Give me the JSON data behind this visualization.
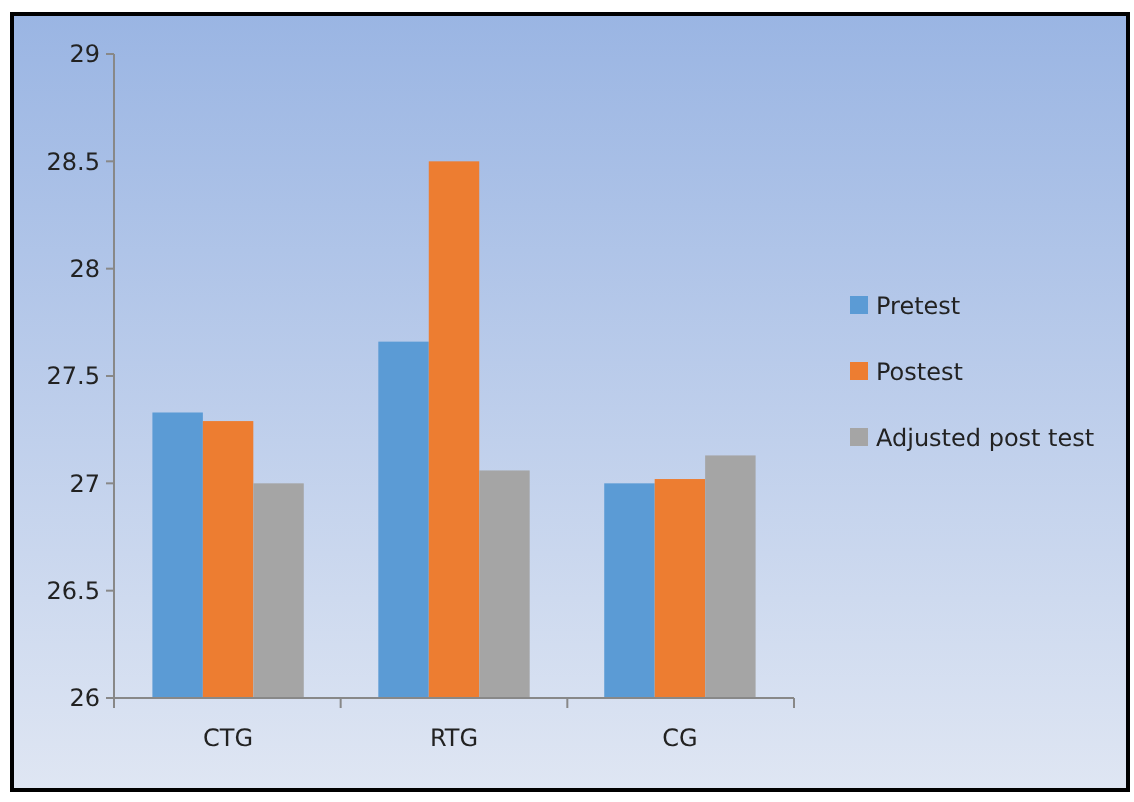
{
  "chart_data": {
    "type": "bar",
    "categories": [
      "CTG",
      "RTG",
      "CG"
    ],
    "series": [
      {
        "name": "Pretest",
        "color": "#5b9bd5",
        "values": [
          27.33,
          27.66,
          27.0
        ]
      },
      {
        "name": "Postest",
        "color": "#ed7d31",
        "values": [
          27.29,
          28.5,
          27.02
        ]
      },
      {
        "name": "Adjusted post test",
        "color": "#a5a5a5",
        "values": [
          27.0,
          27.06,
          27.13
        ]
      }
    ],
    "ylim": [
      26,
      29
    ],
    "yticks": [
      26,
      26.5,
      27,
      27.5,
      28,
      28.5,
      29
    ],
    "grid": false,
    "legend": "right"
  }
}
